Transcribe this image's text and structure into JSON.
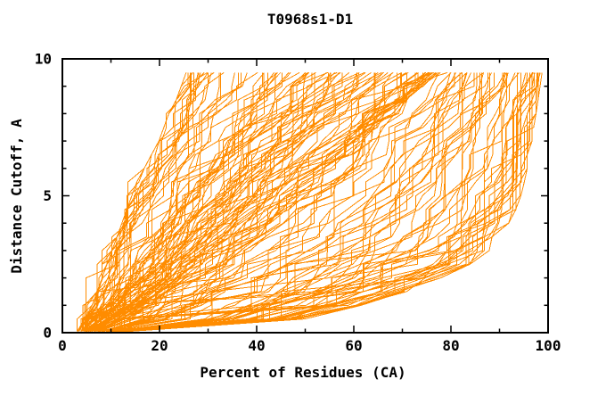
{
  "chart_data": {
    "type": "line",
    "title": "T0968s1-D1",
    "xlabel": "Percent of Residues (CA)",
    "ylabel": "Distance Cutoff, A",
    "xlim": [
      0,
      100
    ],
    "ylim": [
      0,
      10
    ],
    "x_major_ticks": [
      0,
      20,
      40,
      60,
      80,
      100
    ],
    "x_minor_ticks": [
      10,
      30,
      50,
      70,
      90
    ],
    "y_major_ticks": [
      0,
      5,
      10
    ],
    "y_minor_ticks": [
      1,
      2,
      3,
      4,
      6,
      7,
      8,
      9
    ],
    "grid": false,
    "legend": "none",
    "background_color": "#ffffff",
    "axis_color": "#000000",
    "line_color": "#ff8c00",
    "series_count": 150,
    "series_model": {
      "description": "Ensemble of overlapping monotone model-accuracy curves (percent of CA residues within each distance cutoff). Individual curves are unlabeled and unresolvable; ensemble envelope read from pixels below.",
      "seed": 11,
      "jitter": 0.12,
      "vertical_step_probability": 0.18,
      "cutoffs": [
        0.05,
        0.5,
        1.0,
        1.5,
        2.0,
        2.5,
        3.0,
        3.5,
        4.0,
        4.5,
        5.0,
        5.5,
        6.0,
        6.5,
        7.0,
        7.5,
        8.0,
        8.5,
        9.0,
        9.5
      ],
      "envelope_min_percent": [
        3,
        4.5,
        6,
        7,
        8,
        9,
        10,
        11,
        12,
        13,
        14,
        15,
        16.5,
        18,
        19.5,
        20.5,
        21.5,
        23,
        24,
        25
      ],
      "envelope_median_percent": [
        7,
        13,
        18,
        22,
        26,
        29,
        32,
        35,
        38,
        41,
        44,
        47,
        50,
        53,
        56,
        59.5,
        63,
        66.5,
        70,
        73
      ],
      "envelope_max_percent": [
        14,
        50,
        62,
        71,
        78,
        84,
        88,
        90.5,
        92,
        93.5,
        94.5,
        95.2,
        95.8,
        96.3,
        96.8,
        97.2,
        97.6,
        98,
        98.4,
        98.8
      ]
    }
  }
}
